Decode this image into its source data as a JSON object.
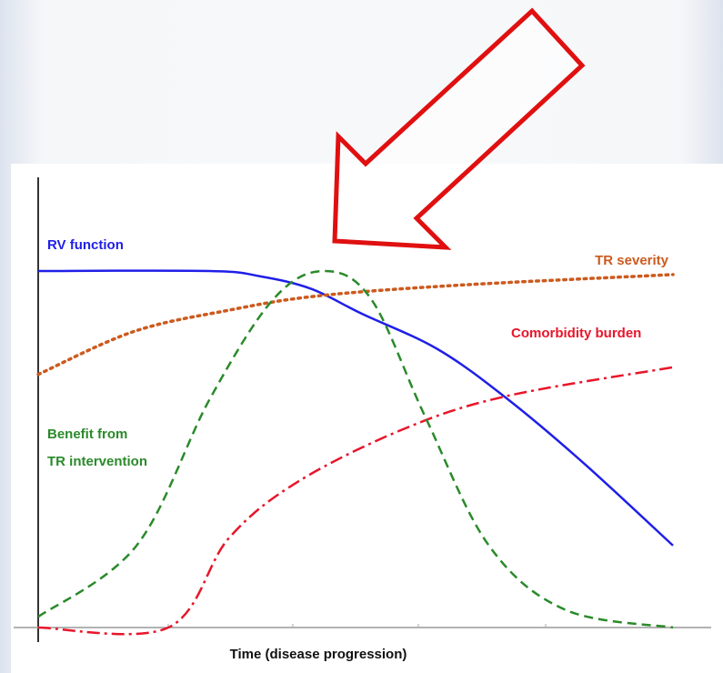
{
  "chart_data": {
    "type": "line",
    "xlabel": "Time (disease progression)",
    "xlim": [
      0,
      100
    ],
    "ylim": [
      0,
      100
    ],
    "series": [
      {
        "name": "RV function",
        "color": "#1f1fe8",
        "style": "solid",
        "x": [
          0,
          27,
          35,
          43,
          51,
          63,
          74,
          86,
          100
        ],
        "values": [
          100,
          100,
          98.5,
          95,
          88,
          78,
          64,
          46,
          23
        ]
      },
      {
        "name": "TR severity",
        "color": "#cc5a1e",
        "style": "dotted",
        "x": [
          0,
          15,
          30,
          44,
          66,
          100
        ],
        "values": [
          71,
          83,
          89,
          93,
          96,
          99
        ]
      },
      {
        "name": "Comorbidity burden",
        "color": "#e8152a",
        "style": "dashdot",
        "x": [
          0,
          20.5,
          30,
          41,
          58,
          74,
          100
        ],
        "values": [
          0,
          0,
          25,
          41,
          56,
          65,
          73
        ]
      },
      {
        "name": "Benefit from\nTR intervention",
        "color": "#2a8a2a",
        "style": "dashed",
        "x": [
          0,
          15.5,
          27,
          37,
          45,
          52.5,
          61,
          71,
          83,
          100
        ],
        "values": [
          3,
          23,
          64,
          92,
          100,
          92,
          59,
          23,
          5,
          0
        ]
      }
    ]
  }
}
